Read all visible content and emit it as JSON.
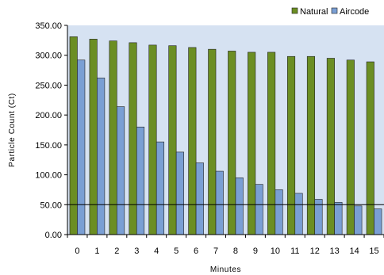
{
  "chart_data": {
    "type": "bar",
    "title": "",
    "xlabel": "Minutes",
    "ylabel": "Particle Count (Ct)",
    "categories": [
      "0",
      "1",
      "2",
      "3",
      "4",
      "5",
      "6",
      "7",
      "8",
      "9",
      "10",
      "11",
      "12",
      "13",
      "14",
      "15"
    ],
    "series": [
      {
        "name": "Natural",
        "color": "#6b8e23",
        "values": [
          331,
          327,
          324,
          321,
          317,
          316,
          313,
          310,
          307,
          305,
          305,
          298,
          298,
          295,
          292,
          289
        ]
      },
      {
        "name": "Aircode",
        "color": "#7a9fd4",
        "values": [
          292,
          262,
          214,
          180,
          155,
          138,
          120,
          106,
          95,
          84,
          75,
          69,
          59,
          54,
          48,
          43
        ]
      }
    ],
    "reference_line": {
      "value": 50
    },
    "ylim": [
      0,
      350
    ],
    "y_ticks": [
      "0.00",
      "50.00",
      "100.00",
      "150.00",
      "200.00",
      "250.00",
      "300.00",
      "350.00"
    ],
    "plot_background": "#d6e2f2",
    "grid": false,
    "legend_position": "top-right"
  }
}
